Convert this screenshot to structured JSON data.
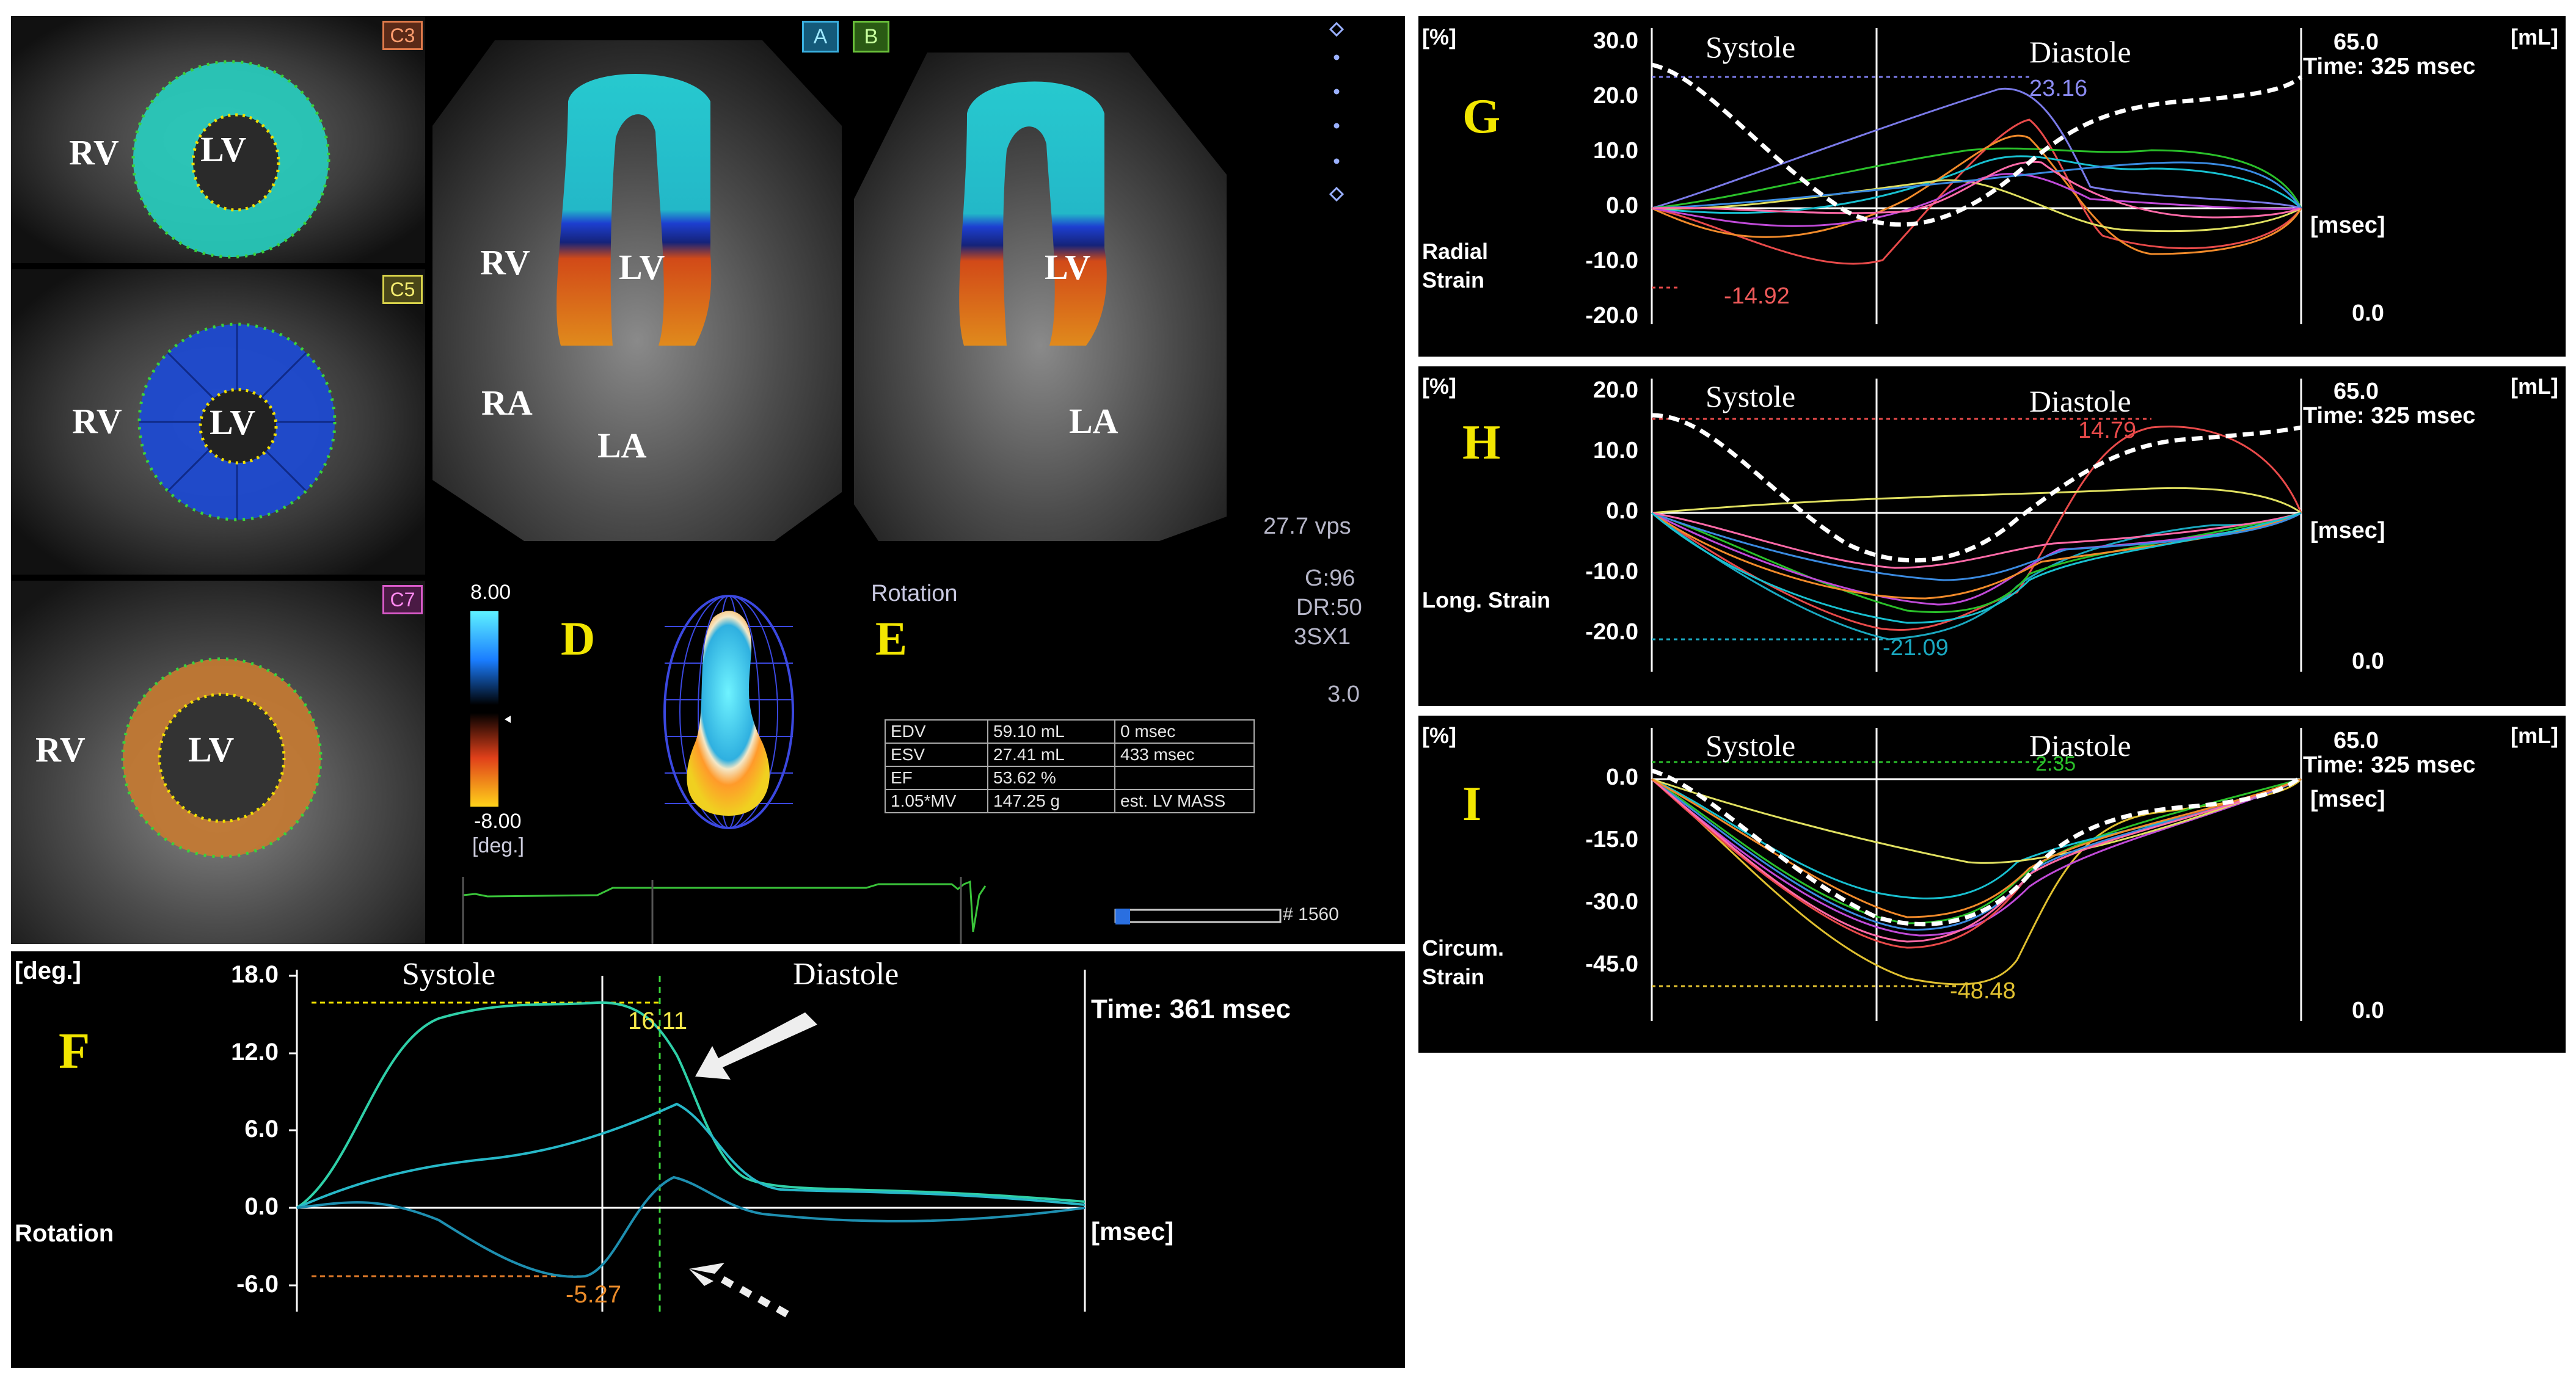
{
  "echo": {
    "slices": [
      {
        "badge": "C3",
        "badge_color": "#e07a4a",
        "rv": "RV",
        "lv": "LV",
        "ring": "#36d6c8"
      },
      {
        "badge": "C5",
        "badge_color": "#d8d24a",
        "rv": "RV",
        "lv": "LV",
        "ring": "#2a5fd6"
      },
      {
        "badge": "C7",
        "badge_color": "#d85ac8",
        "rv": "RV",
        "lv": "LV",
        "ring": "#c4762e"
      }
    ],
    "view_a": {
      "badge": "A",
      "rv": "RV",
      "lv": "LV",
      "ra": "RA",
      "la": "LA"
    },
    "view_b": {
      "badge": "B",
      "lv": "LV",
      "la": "LA"
    },
    "vps": "27.7 vps",
    "gain": "G:96",
    "dr": "DR:50",
    "probe": "3SX1",
    "depth": "3.0",
    "scale": {
      "max": "8.00",
      "min": "-8.00",
      "unit": "[deg.]"
    },
    "label_d": "D",
    "label_e": "E",
    "rotation_title": "Rotation",
    "frame": "# 1560",
    "table": [
      [
        "EDV",
        "59.10 mL",
        "0 msec"
      ],
      [
        "ESV",
        "27.41 mL",
        "433 msec"
      ],
      [
        "EF",
        "53.62 %",
        ""
      ],
      [
        "1.05*MV",
        "147.25 g",
        "est. LV MASS"
      ]
    ]
  },
  "panel_f": {
    "letter": "F",
    "unit": "[deg.]",
    "systole": "Systole",
    "diastole": "Diastole",
    "time": "Time: 361 msec",
    "rotation": "Rotation",
    "msec": "[msec]",
    "yticks": [
      "18.0",
      "12.0",
      "6.0",
      "0.0",
      "-6.0"
    ],
    "peak_pos": "16.11",
    "peak_neg": "-5.27"
  },
  "strain_panels": [
    {
      "letter": "G",
      "unit_left": "[%]",
      "unit_right": "[mL]",
      "systole": "Systole",
      "diastole": "Diastole",
      "vol_top": "65.0",
      "vol_bottom": "0.0",
      "time": "Time: 325 msec",
      "msec": "[msec]",
      "label": [
        "Radial",
        "Strain"
      ],
      "yticks": [
        "30.0",
        "20.0",
        "10.0",
        "0.0",
        "-10.0",
        "-20.0"
      ],
      "peak_pos": "23.16",
      "peak_neg": "-14.92"
    },
    {
      "letter": "H",
      "unit_left": "[%]",
      "unit_right": "[mL]",
      "systole": "Systole",
      "diastole": "Diastole",
      "vol_top": "65.0",
      "vol_bottom": "0.0",
      "time": "Time: 325 msec",
      "msec": "[msec]",
      "label": [
        "Long. Strain"
      ],
      "yticks": [
        "20.0",
        "10.0",
        "0.0",
        "-10.0",
        "-20.0"
      ],
      "peak_pos": "14.79",
      "peak_neg": "-21.09"
    },
    {
      "letter": "I",
      "unit_left": "[%]",
      "unit_right": "[mL]",
      "systole": "Systole",
      "diastole": "Diastole",
      "vol_top": "65.0",
      "vol_bottom": "0.0",
      "time": "Time: 325 msec",
      "msec": "[msec]",
      "label": [
        "Circum.",
        "Strain"
      ],
      "yticks": [
        "0.0",
        "-15.0",
        "-30.0",
        "-45.0"
      ],
      "peak_pos": "2.35",
      "peak_neg": "-48.48"
    }
  ],
  "colors": {
    "letter": "#f2e600",
    "cyan": "#2bd3b8",
    "blue": "#1e8fb0"
  }
}
